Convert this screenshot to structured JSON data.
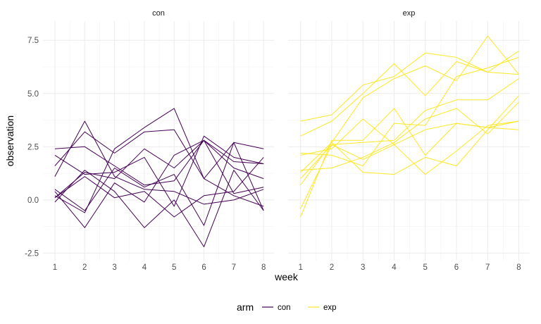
{
  "chart_data": {
    "type": "line",
    "xlabel": "week",
    "ylabel": "observation",
    "xlim": [
      0.6,
      8.35
    ],
    "ylim": [
      -2.85,
      8.4
    ],
    "x_ticks": [
      1,
      2,
      3,
      4,
      5,
      6,
      7,
      8
    ],
    "x_tick_labels": [
      "1",
      "2",
      "3",
      "4",
      "5",
      "6",
      "7",
      "8"
    ],
    "y_ticks": [
      -2.5,
      0,
      2.5,
      5,
      7.5
    ],
    "y_tick_labels": [
      "-2.5",
      "0.0",
      "2.5",
      "5.0",
      "7.5"
    ],
    "grid": true,
    "legend": {
      "title": "arm",
      "position": "bottom",
      "entries": [
        {
          "label": "con",
          "color": "#440154"
        },
        {
          "label": "exp",
          "color": "#fde725"
        }
      ]
    },
    "panels": [
      {
        "strip": "con",
        "color": "#440154",
        "series": [
          {
            "x": [
              1,
              2,
              3,
              4,
              5,
              6,
              7,
              8
            ],
            "values": [
              0.2,
              -0.6,
              2.4,
              3.4,
              4.3,
              1.0,
              0.2,
              -0.3
            ]
          },
          {
            "x": [
              1,
              2,
              3,
              4,
              5,
              6,
              7,
              8
            ],
            "values": [
              1.1,
              3.7,
              1.1,
              0.5,
              0.4,
              -0.2,
              0.0,
              0.5
            ]
          },
          {
            "x": [
              1,
              2,
              3,
              4,
              5,
              6,
              7,
              8
            ],
            "values": [
              2.4,
              2.5,
              1.6,
              0.7,
              0.9,
              2.8,
              0.3,
              0.6
            ]
          },
          {
            "x": [
              1,
              2,
              3,
              4,
              5,
              6,
              7,
              8
            ],
            "values": [
              2.1,
              1.2,
              1.3,
              2.0,
              -0.3,
              3.0,
              2.0,
              1.7
            ]
          },
          {
            "x": [
              1,
              2,
              3,
              4,
              5,
              6,
              7,
              8
            ],
            "values": [
              0.1,
              1.3,
              1.0,
              2.4,
              1.5,
              2.8,
              1.5,
              1.0
            ]
          },
          {
            "x": [
              1,
              2,
              3,
              4,
              5,
              6,
              7,
              8
            ],
            "values": [
              -0.1,
              1.4,
              0.4,
              -1.3,
              0.0,
              -2.2,
              1.4,
              -0.5
            ]
          },
          {
            "x": [
              1,
              2,
              3,
              4,
              5,
              6,
              7,
              8
            ],
            "values": [
              0.4,
              -1.3,
              0.8,
              -0.1,
              2.1,
              2.8,
              1.8,
              1.7
            ]
          },
          {
            "x": [
              1,
              2,
              3,
              4,
              5,
              6,
              7,
              8
            ],
            "values": [
              1.6,
              3.2,
              2.2,
              3.2,
              3.3,
              1.0,
              2.7,
              -0.5
            ]
          },
          {
            "x": [
              1,
              2,
              3,
              4,
              5,
              6,
              7,
              8
            ],
            "values": [
              0.5,
              -0.5,
              1.5,
              0.6,
              1.2,
              -1.2,
              2.7,
              2.4
            ]
          },
          {
            "x": [
              1,
              2,
              3,
              4,
              5,
              6,
              7,
              8
            ],
            "values": [
              0.1,
              1.1,
              0.1,
              0.4,
              -0.8,
              0.2,
              0.4,
              2.0
            ]
          }
        ]
      },
      {
        "strip": "exp",
        "color": "#fde725",
        "series": [
          {
            "x": [
              1,
              2,
              3,
              4,
              5,
              6,
              7,
              8
            ],
            "values": [
              3.0,
              3.7,
              5.0,
              6.4,
              4.9,
              6.5,
              6.0,
              7.0
            ]
          },
          {
            "x": [
              1,
              2,
              3,
              4,
              5,
              6,
              7,
              8
            ],
            "values": [
              3.7,
              4.0,
              5.4,
              5.8,
              6.9,
              6.7,
              6.0,
              5.9
            ]
          },
          {
            "x": [
              1,
              2,
              3,
              4,
              5,
              6,
              7,
              8
            ],
            "values": [
              -0.8,
              2.8,
              2.8,
              4.3,
              2.1,
              3.6,
              3.4,
              3.7
            ]
          },
          {
            "x": [
              1,
              2,
              3,
              4,
              5,
              6,
              7,
              8
            ],
            "values": [
              1.3,
              2.7,
              4.8,
              5.7,
              6.3,
              5.6,
              7.7,
              5.9
            ]
          },
          {
            "x": [
              1,
              2,
              3,
              4,
              5,
              6,
              7,
              8
            ],
            "values": [
              2.2,
              2.1,
              1.6,
              3.6,
              3.5,
              5.8,
              6.2,
              6.7
            ]
          },
          {
            "x": [
              1,
              2,
              3,
              4,
              5,
              6,
              7,
              8
            ],
            "values": [
              1.0,
              2.6,
              1.9,
              2.6,
              3.3,
              3.6,
              3.4,
              3.3
            ]
          },
          {
            "x": [
              1,
              2,
              3,
              4,
              5,
              6,
              7,
              8
            ],
            "values": [
              -0.4,
              2.6,
              2.7,
              2.8,
              4.2,
              4.7,
              4.7,
              5.7
            ]
          },
          {
            "x": [
              1,
              2,
              3,
              4,
              5,
              6,
              7,
              8
            ],
            "values": [
              1.4,
              1.5,
              2.0,
              2.7,
              3.8,
              4.3,
              3.1,
              4.6
            ]
          },
          {
            "x": [
              1,
              2,
              3,
              4,
              5,
              6,
              7,
              8
            ],
            "values": [
              2.1,
              2.4,
              3.8,
              2.6,
              1.2,
              2.3,
              3.5,
              3.7
            ]
          },
          {
            "x": [
              1,
              2,
              3,
              4,
              5,
              6,
              7,
              8
            ],
            "values": [
              0.7,
              2.7,
              1.3,
              1.2,
              2.0,
              1.6,
              3.3,
              4.9
            ]
          }
        ]
      }
    ]
  }
}
